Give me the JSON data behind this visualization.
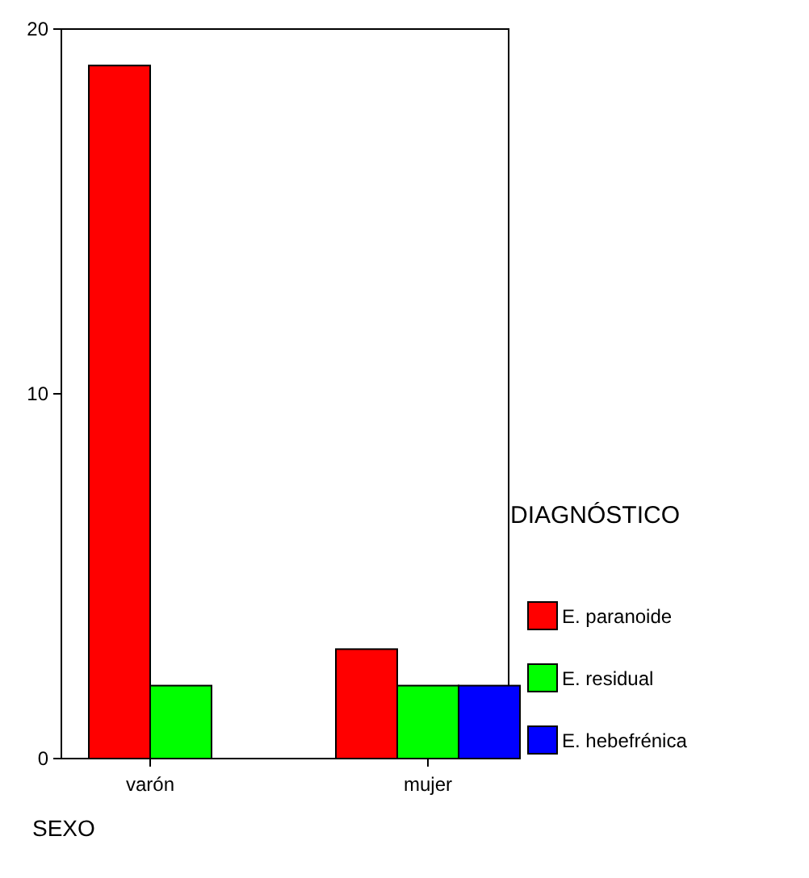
{
  "chart_data": {
    "type": "bar",
    "categories": [
      "varón",
      "mujer"
    ],
    "series": [
      {
        "name": "E. paranoide",
        "color": "#ff0000",
        "values": [
          19,
          3
        ]
      },
      {
        "name": "E. residual",
        "color": "#00ff00",
        "values": [
          2,
          2
        ]
      },
      {
        "name": "E. hebefrénica",
        "color": "#0000ff",
        "values": [
          null,
          2
        ]
      }
    ],
    "ylim": [
      0,
      20
    ],
    "yticks": [
      0,
      10,
      20
    ],
    "xlabel": "SEXO",
    "legend_title": "DIAGNÓSTICO",
    "legend": "right",
    "grid": false
  }
}
